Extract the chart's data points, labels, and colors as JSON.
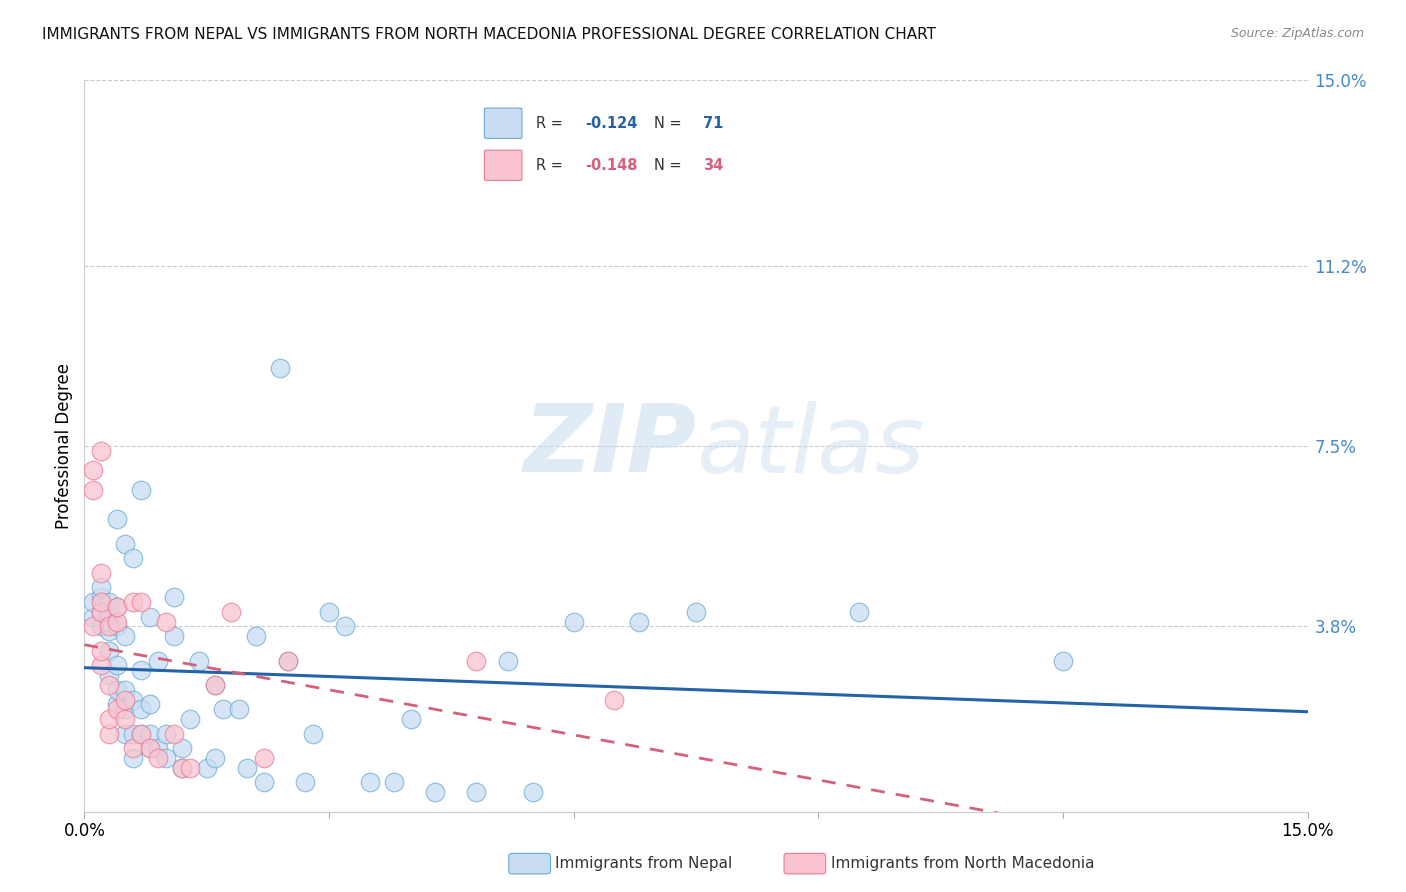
{
  "title": "IMMIGRANTS FROM NEPAL VS IMMIGRANTS FROM NORTH MACEDONIA PROFESSIONAL DEGREE CORRELATION CHART",
  "source": "Source: ZipAtlas.com",
  "ylabel": "Professional Degree",
  "xlim": [
    0.0,
    0.15
  ],
  "ylim": [
    0.0,
    0.15
  ],
  "yticks": [
    0.038,
    0.075,
    0.112,
    0.15
  ],
  "ytick_labels": [
    "3.8%",
    "7.5%",
    "11.2%",
    "15.0%"
  ],
  "nepal_R": "-0.124",
  "nepal_N": "71",
  "macedonia_R": "-0.148",
  "macedonia_N": "34",
  "nepal_fill_color": "#c8ddf2",
  "nepal_edge_color": "#6aaad4",
  "macedonia_fill_color": "#f9c4cf",
  "macedonia_edge_color": "#e87a96",
  "nepal_line_color": "#2563a8",
  "macedonia_line_color": "#d4607a",
  "watermark_zip": "ZIP",
  "watermark_atlas": "atlas",
  "nepal_scatter_x": [
    0.001,
    0.001,
    0.002,
    0.002,
    0.002,
    0.002,
    0.003,
    0.003,
    0.003,
    0.003,
    0.003,
    0.003,
    0.004,
    0.004,
    0.004,
    0.004,
    0.004,
    0.004,
    0.005,
    0.005,
    0.005,
    0.005,
    0.005,
    0.006,
    0.006,
    0.006,
    0.006,
    0.007,
    0.007,
    0.007,
    0.007,
    0.008,
    0.008,
    0.008,
    0.008,
    0.009,
    0.009,
    0.01,
    0.01,
    0.011,
    0.011,
    0.012,
    0.012,
    0.013,
    0.014,
    0.015,
    0.016,
    0.016,
    0.017,
    0.019,
    0.02,
    0.021,
    0.022,
    0.024,
    0.025,
    0.027,
    0.028,
    0.03,
    0.032,
    0.035,
    0.038,
    0.04,
    0.043,
    0.048,
    0.052,
    0.055,
    0.06,
    0.068,
    0.075,
    0.095,
    0.12
  ],
  "nepal_scatter_y": [
    0.04,
    0.043,
    0.038,
    0.041,
    0.044,
    0.046,
    0.028,
    0.033,
    0.037,
    0.039,
    0.041,
    0.043,
    0.022,
    0.025,
    0.03,
    0.038,
    0.042,
    0.06,
    0.016,
    0.021,
    0.025,
    0.036,
    0.055,
    0.011,
    0.016,
    0.023,
    0.052,
    0.016,
    0.021,
    0.029,
    0.066,
    0.013,
    0.016,
    0.022,
    0.04,
    0.013,
    0.031,
    0.011,
    0.016,
    0.036,
    0.044,
    0.009,
    0.013,
    0.019,
    0.031,
    0.009,
    0.011,
    0.026,
    0.021,
    0.021,
    0.009,
    0.036,
    0.006,
    0.091,
    0.031,
    0.006,
    0.016,
    0.041,
    0.038,
    0.006,
    0.006,
    0.019,
    0.004,
    0.004,
    0.031,
    0.004,
    0.039,
    0.039,
    0.041,
    0.041,
    0.031
  ],
  "macedonia_scatter_x": [
    0.001,
    0.001,
    0.001,
    0.002,
    0.002,
    0.002,
    0.002,
    0.002,
    0.002,
    0.003,
    0.003,
    0.003,
    0.003,
    0.004,
    0.004,
    0.004,
    0.005,
    0.005,
    0.006,
    0.006,
    0.007,
    0.007,
    0.008,
    0.009,
    0.01,
    0.011,
    0.012,
    0.013,
    0.016,
    0.018,
    0.022,
    0.025,
    0.048,
    0.065
  ],
  "macedonia_scatter_y": [
    0.066,
    0.07,
    0.038,
    0.03,
    0.033,
    0.041,
    0.043,
    0.049,
    0.074,
    0.016,
    0.019,
    0.026,
    0.038,
    0.021,
    0.039,
    0.042,
    0.019,
    0.023,
    0.013,
    0.043,
    0.016,
    0.043,
    0.013,
    0.011,
    0.039,
    0.016,
    0.009,
    0.009,
    0.026,
    0.041,
    0.011,
    0.031,
    0.031,
    0.023
  ]
}
